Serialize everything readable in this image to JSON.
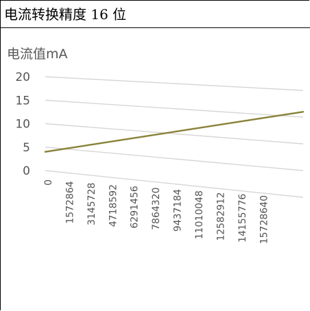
{
  "caption": "电流转换精度 16 位",
  "chart_data": {
    "type": "line",
    "title": "",
    "ylabel": "电流值mA",
    "xlabel": "",
    "x_tick_labels": [
      "0",
      "1572864",
      "3145728",
      "4718592",
      "6291456",
      "7864320",
      "9437184",
      "11010048",
      "12582912",
      "14155776",
      "15728640"
    ],
    "y_tick_labels": [
      "0",
      "5",
      "10",
      "15",
      "20"
    ],
    "ylim": [
      0,
      20
    ],
    "xlim": [
      0,
      16777215
    ],
    "grid": true,
    "series": [
      {
        "x": [
          0,
          16777215
        ],
        "values": [
          4,
          16
        ]
      }
    ],
    "colors": {
      "line": "#8a7a3a",
      "grid": "#d6d6d6",
      "axis_text": "#555555"
    }
  }
}
